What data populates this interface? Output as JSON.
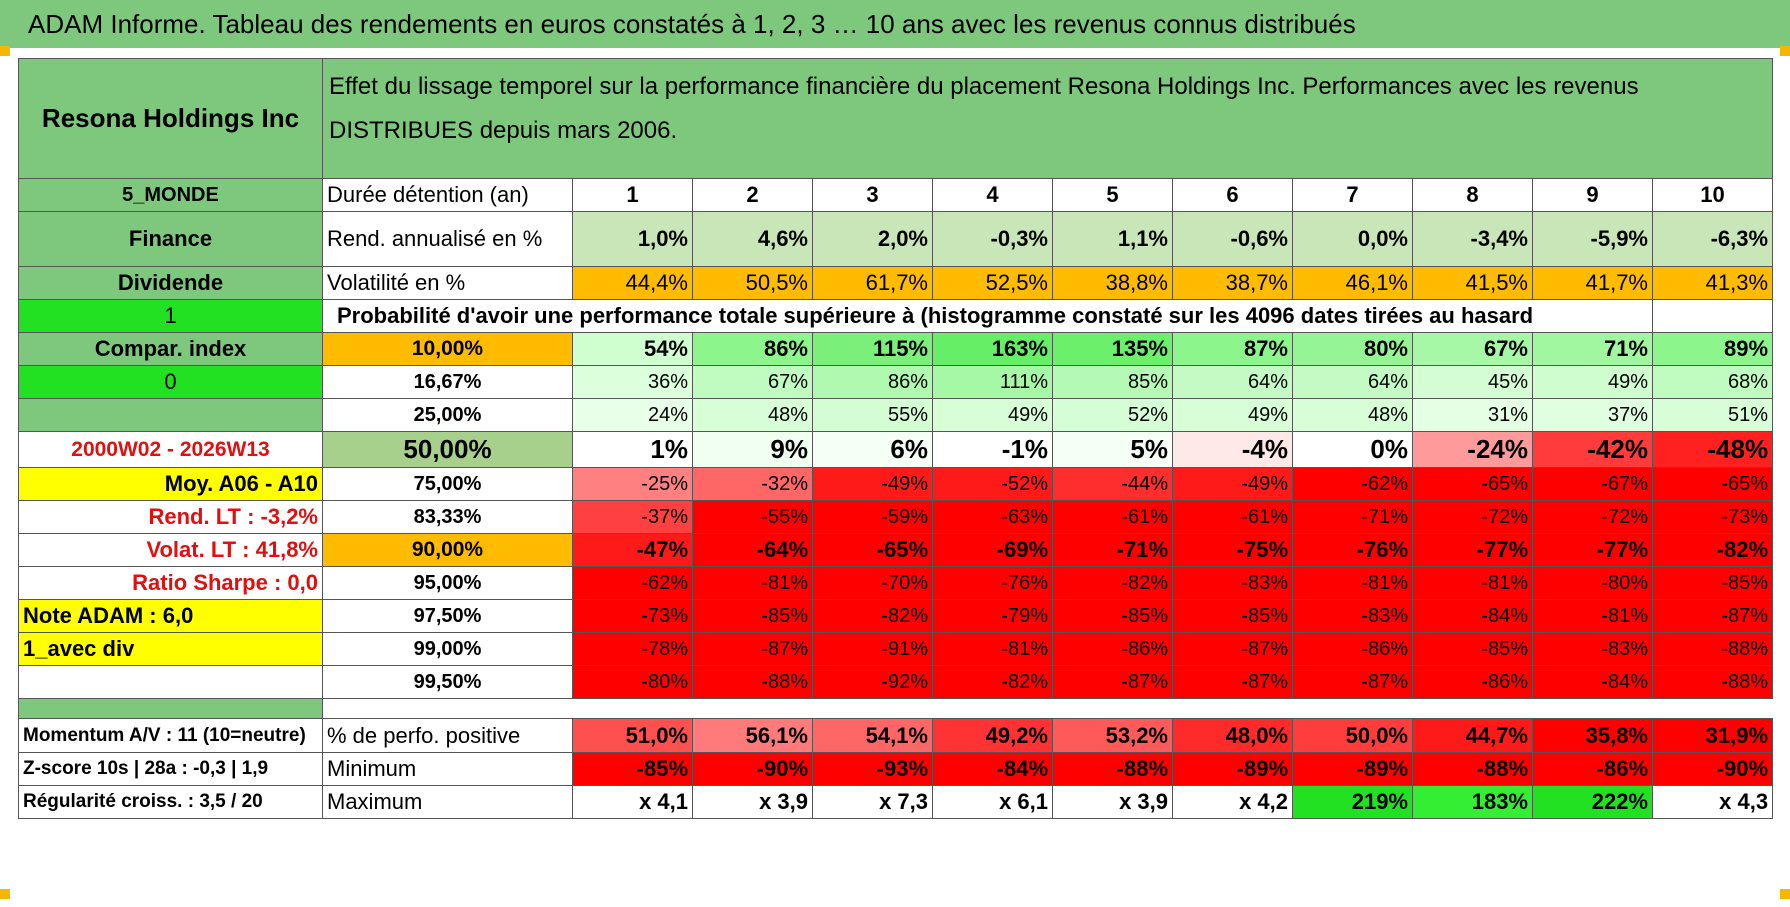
{
  "title": "ADAM Informe. Tableau des rendements en euros constatés à 1, 2, 3 … 10 ans avec les revenus connus distribués",
  "company": "Resona Holdings Inc",
  "description": "Effet du lissage temporel sur la performance financière du placement Resona Holdings Inc. Performances avec les revenus DISTRIBUES depuis mars 2006.",
  "left": {
    "region": "5_MONDE",
    "sector": "Finance",
    "type": "Dividende",
    "flag1": "1",
    "compar": "Compar. index",
    "flag2": "0",
    "period": "2000W02 - 2026W13",
    "moy": "Moy. A06 - A10",
    "rend_lt": "Rend. LT :   -3,2%",
    "volat_lt": "Volat. LT :   41,8%",
    "sharpe": "Ratio Sharpe :    0,0",
    "note": "Note ADAM : 6,0",
    "avec_div": "1_avec div",
    "momentum": "Momentum A/V : 11 (10=neutre)",
    "zscore": "Z-score 10s | 28a : -0,3 | 1,9",
    "regularite": "Régularité croiss. : 3,5 / 20"
  },
  "labels": {
    "duree": "Durée détention (an)",
    "rend": "Rend. annualisé en %",
    "volat": "Volatilité en %",
    "prob": "Probabilité d'avoir une performance totale supérieure à (histogramme constaté sur les 4096 dates tirées au hasard)",
    "pos": "% de perfo. positive",
    "min": "Minimum",
    "max": "Maximum"
  },
  "years": [
    "1",
    "2",
    "3",
    "4",
    "5",
    "6",
    "7",
    "8",
    "9",
    "10"
  ],
  "rend": [
    "1,0%",
    "4,6%",
    "2,0%",
    "-0,3%",
    "1,1%",
    "-0,6%",
    "0,0%",
    "-3,4%",
    "-5,9%",
    "-6,3%"
  ],
  "volat": [
    "44,4%",
    "50,5%",
    "61,7%",
    "52,5%",
    "38,8%",
    "38,7%",
    "46,1%",
    "41,5%",
    "41,7%",
    "41,3%"
  ],
  "quantiles": [
    {
      "label": "10,00%",
      "values": [
        "54%",
        "86%",
        "115%",
        "163%",
        "135%",
        "87%",
        "80%",
        "67%",
        "71%",
        "89%"
      ]
    },
    {
      "label": "16,67%",
      "values": [
        "36%",
        "67%",
        "86%",
        "111%",
        "85%",
        "64%",
        "64%",
        "45%",
        "49%",
        "68%"
      ]
    },
    {
      "label": "25,00%",
      "values": [
        "24%",
        "48%",
        "55%",
        "49%",
        "52%",
        "49%",
        "48%",
        "31%",
        "37%",
        "51%"
      ]
    },
    {
      "label": "50,00%",
      "values": [
        "1%",
        "9%",
        "6%",
        "-1%",
        "5%",
        "-4%",
        "0%",
        "-24%",
        "-42%",
        "-48%"
      ]
    },
    {
      "label": "75,00%",
      "values": [
        "-25%",
        "-32%",
        "-49%",
        "-52%",
        "-44%",
        "-49%",
        "-62%",
        "-65%",
        "-67%",
        "-65%"
      ]
    },
    {
      "label": "83,33%",
      "values": [
        "-37%",
        "-55%",
        "-59%",
        "-63%",
        "-61%",
        "-61%",
        "-71%",
        "-72%",
        "-72%",
        "-73%"
      ]
    },
    {
      "label": "90,00%",
      "values": [
        "-47%",
        "-64%",
        "-65%",
        "-69%",
        "-71%",
        "-75%",
        "-76%",
        "-77%",
        "-77%",
        "-82%"
      ]
    },
    {
      "label": "95,00%",
      "values": [
        "-62%",
        "-81%",
        "-70%",
        "-76%",
        "-82%",
        "-83%",
        "-81%",
        "-81%",
        "-80%",
        "-85%"
      ]
    },
    {
      "label": "97,50%",
      "values": [
        "-73%",
        "-85%",
        "-82%",
        "-79%",
        "-85%",
        "-85%",
        "-83%",
        "-84%",
        "-81%",
        "-87%"
      ]
    },
    {
      "label": "99,00%",
      "values": [
        "-78%",
        "-87%",
        "-91%",
        "-81%",
        "-86%",
        "-87%",
        "-86%",
        "-85%",
        "-83%",
        "-88%"
      ]
    },
    {
      "label": "99,50%",
      "values": [
        "-80%",
        "-88%",
        "-92%",
        "-82%",
        "-87%",
        "-87%",
        "-87%",
        "-86%",
        "-84%",
        "-88%"
      ]
    }
  ],
  "pos": [
    "51,0%",
    "56,1%",
    "54,1%",
    "49,2%",
    "53,2%",
    "48,0%",
    "50,0%",
    "44,7%",
    "35,8%",
    "31,9%"
  ],
  "min": [
    "-85%",
    "-90%",
    "-93%",
    "-84%",
    "-88%",
    "-89%",
    "-89%",
    "-88%",
    "-86%",
    "-90%"
  ],
  "max": [
    "x 4,1",
    "x 3,9",
    "x 7,3",
    "x 6,1",
    "x 3,9",
    "x 4,2",
    "219%",
    "183%",
    "222%",
    "x 4,3"
  ],
  "colors": {
    "header_green": "#7ec87e",
    "bright_green": "#22e022",
    "yellow": "#ffff00",
    "orange": "#ffbb00",
    "red": "#ff0000",
    "label_red": "#e01010"
  },
  "cell_colors": {
    "rend": [
      "#c8e6b8",
      "#c8e6b8",
      "#c8e6b8",
      "#c8e6b8",
      "#c8e6b8",
      "#c8e6b8",
      "#c8e6b8",
      "#c8e6b8",
      "#c8e6b8",
      "#c8e6b8"
    ],
    "volat": [
      "#ffbb00",
      "#ffbb00",
      "#ffbb00",
      "#ffbb00",
      "#ffbb00",
      "#ffbb00",
      "#ffbb00",
      "#ffbb00",
      "#ffbb00",
      "#ffbb00"
    ],
    "quantiles": [
      [
        "#cfffcf",
        "#8cf58c",
        "#7af07a",
        "#66ee66",
        "#6cf06c",
        "#8cf58c",
        "#95f595",
        "#a6f7a6",
        "#a0f7a0",
        "#8cf58c"
      ],
      [
        "#dcffdc",
        "#c0fbc0",
        "#b0f9b0",
        "#a6f7a6",
        "#b4f9b4",
        "#c4fbc4",
        "#c4fbc4",
        "#d4fdd4",
        "#d0fdd0",
        "#c0fbc0"
      ],
      [
        "#e8ffe8",
        "#d8fed8",
        "#d4fdd4",
        "#d8fed8",
        "#d6fed6",
        "#d8fed8",
        "#d8fed8",
        "#e4ffe4",
        "#e0ffe0",
        "#d8fed8"
      ],
      [
        "#ffffff",
        "#f0fff0",
        "#f5fff5",
        "#ffffff",
        "#f5fff5",
        "#ffe8e8",
        "#ffffff",
        "#ff9a9a",
        "#ff3b3b",
        "#ff2020"
      ],
      [
        "#ff8080",
        "#ff6666",
        "#ff1a1a",
        "#ff1a1a",
        "#ff2e2e",
        "#ff1a1a",
        "#ff0000",
        "#ff0000",
        "#ff0000",
        "#ff0000"
      ],
      [
        "#ff4040",
        "#ff0000",
        "#ff0000",
        "#ff0000",
        "#ff0000",
        "#ff0000",
        "#ff0000",
        "#ff0000",
        "#ff0000",
        "#ff0000"
      ],
      [
        "#ff1a1a",
        "#ff0000",
        "#ff0000",
        "#ff0000",
        "#ff0000",
        "#ff0000",
        "#ff0000",
        "#ff0000",
        "#ff0000",
        "#ff0000"
      ],
      [
        "#ff0000",
        "#ff0000",
        "#ff0000",
        "#ff0000",
        "#ff0000",
        "#ff0000",
        "#ff0000",
        "#ff0000",
        "#ff0000",
        "#ff0000"
      ],
      [
        "#ff0000",
        "#ff0000",
        "#ff0000",
        "#ff0000",
        "#ff0000",
        "#ff0000",
        "#ff0000",
        "#ff0000",
        "#ff0000",
        "#ff0000"
      ],
      [
        "#ff0000",
        "#ff0000",
        "#ff0000",
        "#ff0000",
        "#ff0000",
        "#ff0000",
        "#ff0000",
        "#ff0000",
        "#ff0000",
        "#ff0000"
      ],
      [
        "#ff0000",
        "#ff0000",
        "#ff0000",
        "#ff0000",
        "#ff0000",
        "#ff0000",
        "#ff0000",
        "#ff0000",
        "#ff0000",
        "#ff0000"
      ]
    ],
    "pos": [
      "#ff5050",
      "#ff7a7a",
      "#ff6666",
      "#ff3333",
      "#ff5a5a",
      "#ff2a2a",
      "#ff3d3d",
      "#ff1a1a",
      "#ff0000",
      "#ff0000"
    ],
    "min": [
      "#ff0000",
      "#ff0000",
      "#ff0000",
      "#ff0000",
      "#ff0000",
      "#ff0000",
      "#ff0000",
      "#ff0000",
      "#ff0000",
      "#ff0000"
    ],
    "max": [
      "#ffffff",
      "#ffffff",
      "#ffffff",
      "#ffffff",
      "#ffffff",
      "#ffffff",
      "#22e022",
      "#33ee33",
      "#22e022",
      "#ffffff"
    ]
  }
}
